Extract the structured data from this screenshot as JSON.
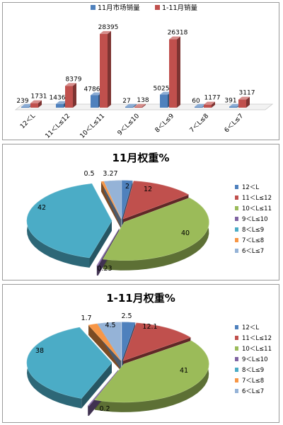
{
  "chart_data": [
    {
      "type": "bar",
      "categories": [
        "12＜L",
        "11＜L≤12",
        "10＜L≤11",
        "9＜L≤10",
        "8＜L≤9",
        "7＜L≤8",
        "6＜L≤7"
      ],
      "series": [
        {
          "name": "11月市场销量",
          "values": [
            239,
            1436,
            4786,
            27,
            5025,
            60,
            391
          ]
        },
        {
          "name": "1-11月销量",
          "values": [
            1731,
            8379,
            28395,
            138,
            26318,
            1177,
            3117
          ]
        }
      ],
      "title": "",
      "xlabel": "",
      "ylabel": "",
      "ylim": [
        0,
        30000
      ],
      "legend": "top",
      "grid": false
    },
    {
      "type": "pie",
      "title": "11月权重%",
      "categories": [
        "12＜L",
        "11＜L≤12",
        "10＜L≤11",
        "9＜L≤10",
        "8＜L≤9",
        "7＜L≤8",
        "6＜L≤7"
      ],
      "values": [
        2,
        12,
        40,
        0.23,
        42,
        0.5,
        3.27
      ],
      "value_labels": [
        "2",
        "12",
        "40",
        "0.23",
        "42",
        "0.5",
        "3.27"
      ],
      "legend": "right"
    },
    {
      "type": "pie",
      "title": "1-11月权重%",
      "categories": [
        "12＜L",
        "11＜L≤12",
        "10＜L≤11",
        "9＜L≤10",
        "8＜L≤9",
        "7＜L≤8",
        "6＜L≤7"
      ],
      "values": [
        2.5,
        12.1,
        41,
        0.2,
        38,
        1.7,
        4.5
      ],
      "value_labels": [
        "2.5",
        "12.1",
        "41",
        "0.2",
        "38",
        "1.7",
        "4.5"
      ],
      "legend": "right"
    }
  ],
  "colors": {
    "bar_series": [
      "#4F81BD",
      "#C0504D"
    ],
    "pie": [
      "#4F81BD",
      "#C0504D",
      "#9BBB59",
      "#8064A2",
      "#4BACC6",
      "#F79646",
      "#95B3D7"
    ]
  }
}
